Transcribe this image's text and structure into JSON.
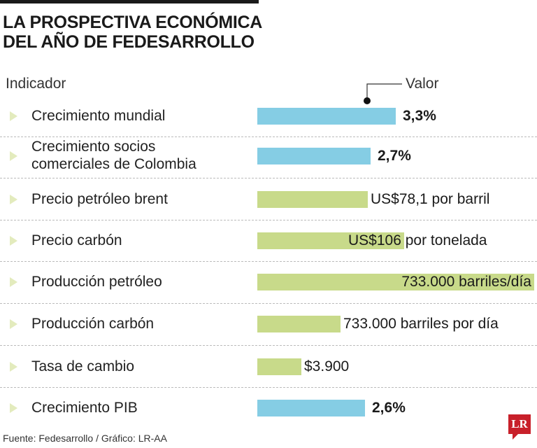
{
  "title_line1": "LA PROSPECTIVA ECONÓMICA",
  "title_line2": "DEL AÑO DE FEDESARROLLO",
  "chart_data": {
    "type": "bar",
    "orientation": "horizontal",
    "column_headers": {
      "indicator": "Indicador",
      "value": "Valor"
    },
    "colors": {
      "blue": "#85cde4",
      "green": "#c8da8a"
    },
    "rows": [
      {
        "label": "Crecimiento mundial",
        "value": "3,3%",
        "bar_fraction": 0.5,
        "color": "#85cde4",
        "bold": true
      },
      {
        "label": "Crecimiento socios comerciales de Colombia",
        "label_line1": "Crecimiento socios",
        "label_line2": "comerciales de Colombia",
        "value": "2,7%",
        "bar_fraction": 0.41,
        "color": "#85cde4",
        "bold": true
      },
      {
        "label": "Precio petróleo brent",
        "value": "US$78,1 por barril",
        "bar_fraction": 0.4,
        "color": "#c8da8a",
        "bold": false
      },
      {
        "label": "Precio carbón",
        "value": "US$106 por tonelada",
        "bar_fraction": 0.53,
        "color": "#c8da8a",
        "bold": false
      },
      {
        "label": "Producción petróleo",
        "value": "733.000 barriles/día",
        "bar_fraction": 1.0,
        "color": "#c8da8a",
        "bold": false
      },
      {
        "label": "Producción carbón",
        "value": "733.000 barriles por día",
        "bar_fraction": 0.3,
        "color": "#c8da8a",
        "bold": false
      },
      {
        "label": "Tasa de cambio",
        "value": "$3.900",
        "bar_fraction": 0.16,
        "color": "#c8da8a",
        "bold": false
      },
      {
        "label": "Crecimiento PIB",
        "value": "2,6%",
        "bar_fraction": 0.39,
        "color": "#85cde4",
        "bold": true
      }
    ]
  },
  "source": "Fuente: Fedesarrollo / Gráfico: LR-AA",
  "logo": "LR"
}
